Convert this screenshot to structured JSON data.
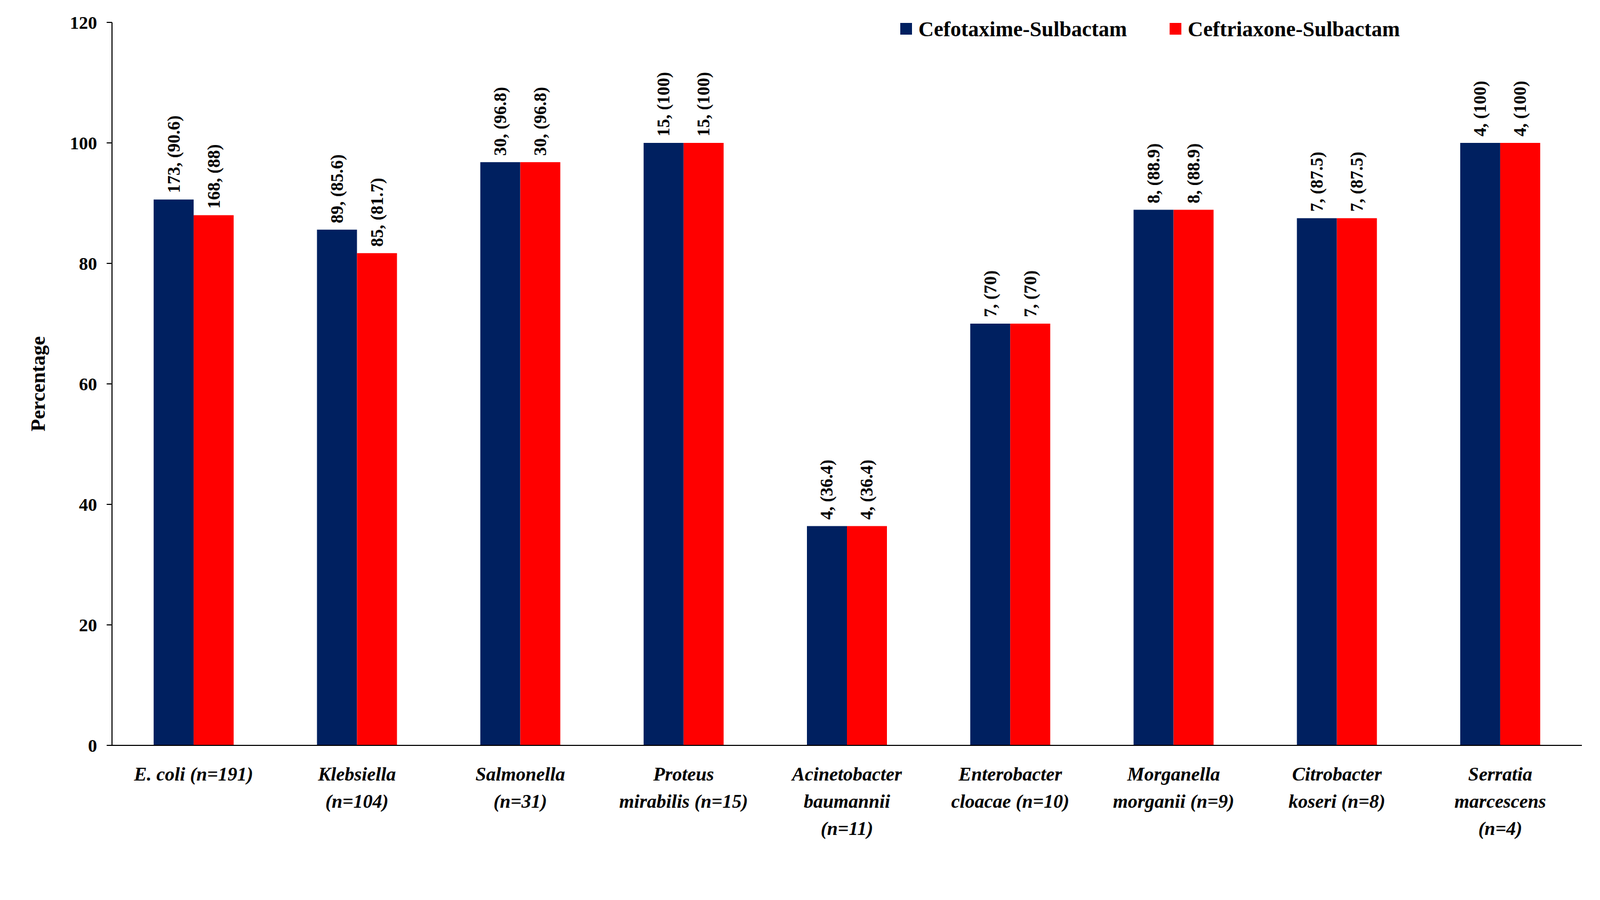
{
  "chart_data": {
    "type": "bar",
    "y_label": "Percentage",
    "categories": [
      "E. coli (n=191)",
      "Klebsiella\n(n=104)",
      "Salmonella\n(n=31)",
      "Proteus\nmirabilis (n=15)",
      "Acinetobacter\nbaumannii\n(n=11)",
      "Enterobacter\ncloacae (n=10)",
      "Morganella\nmorganii (n=9)",
      "Citrobacter\nkoseri (n=8)",
      "Serratia\nmarcescens\n(n=4)"
    ],
    "series": [
      {
        "name": "Cefotaxime-Sulbactam",
        "color": "#002060",
        "values": [
          90.6,
          85.6,
          96.8,
          100,
          36.4,
          70,
          88.9,
          87.5,
          100
        ],
        "value_labels": [
          "173, (90.6)",
          "89, (85.6)",
          "30, (96.8)",
          "15, (100)",
          "4, (36.4)",
          "7, (70)",
          "8, (88.9)",
          "7, (87.5)",
          "4, (100)"
        ]
      },
      {
        "name": "Ceftriaxone-Sulbactam",
        "color": "#ff0000",
        "values": [
          88,
          81.7,
          96.8,
          100,
          36.4,
          70,
          88.9,
          87.5,
          100
        ],
        "value_labels": [
          "168, (88)",
          "85, (81.7)",
          "30, (96.8)",
          "15, (100)",
          "4, (36.4)",
          "7, (70)",
          "8, (88.9)",
          "7, (87.5)",
          "4, (100)"
        ]
      }
    ],
    "ylim": [
      0,
      120
    ],
    "yticks": [
      0,
      20,
      40,
      60,
      80,
      100,
      120
    ],
    "grid": false,
    "legend": "top-right",
    "data_labels": true
  }
}
